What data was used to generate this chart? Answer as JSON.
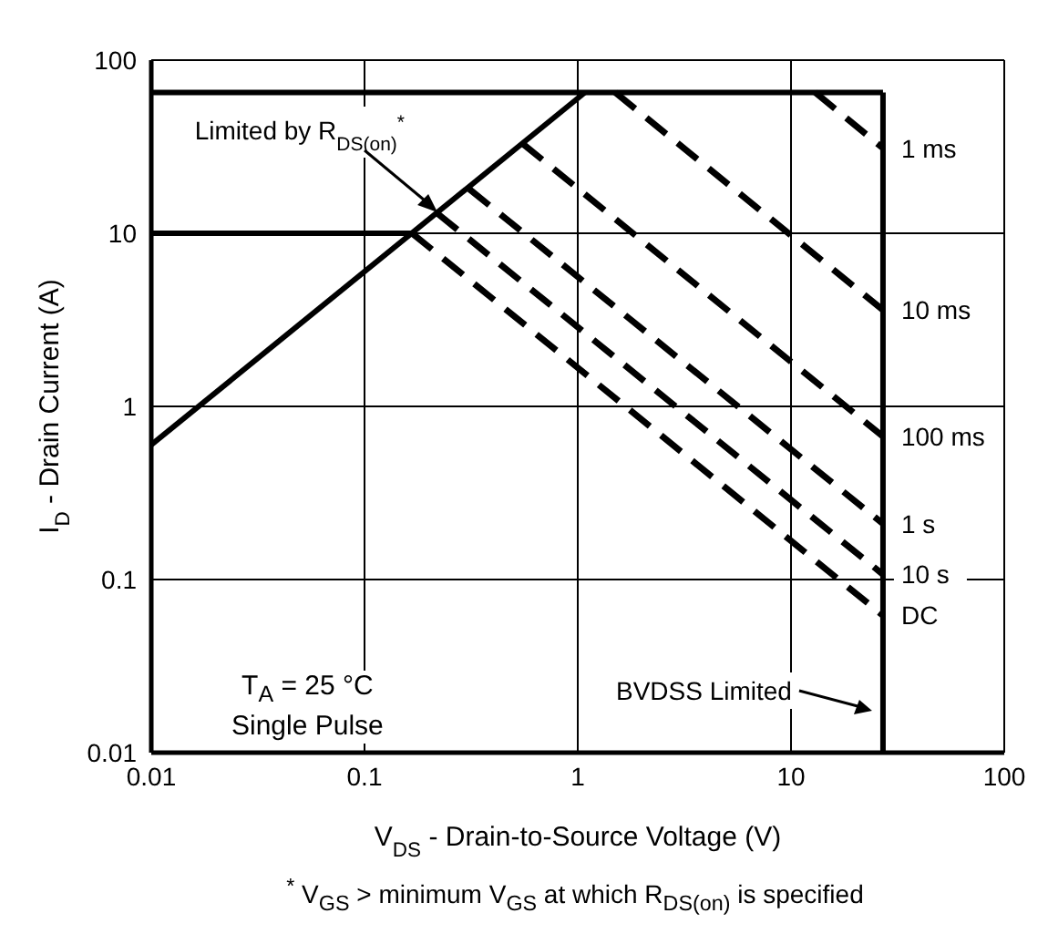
{
  "chart_data": {
    "type": "line",
    "xlabel": "V$_{DS}$ - Drain-to-Source Voltage (V)",
    "ylabel": "I$_{D}$ - Drain Current (A)",
    "log": "xy",
    "xlim": [
      0.01,
      100
    ],
    "ylim": [
      0.01,
      100
    ],
    "xticks": [
      0.01,
      0.1,
      1,
      10,
      100
    ],
    "yticks": [
      0.01,
      0.1,
      1,
      10,
      100
    ],
    "grid": true,
    "marker": "none",
    "series": [
      {
        "name": "Limited by R$_{DS(on)}$$^{*}$",
        "color": "#000000",
        "line_style": "solid",
        "x": [
          0.01,
          1.08
        ],
        "values": [
          0.6,
          65
        ]
      },
      {
        "color": "#000000",
        "line_style": "solid",
        "x": [
          0.01,
          27
        ],
        "values": [
          65,
          65
        ]
      },
      {
        "color": "#000000",
        "line_style": "solid",
        "x": [
          0.01,
          0.167
        ],
        "values": [
          10,
          10
        ]
      },
      {
        "name": "BVDSS Limited",
        "color": "#000000",
        "line_style": "solid",
        "x": [
          27,
          27
        ],
        "values": [
          0.01,
          65
        ]
      },
      {
        "name": "1 ms",
        "color": "#000000",
        "line_style": "dashed",
        "x": [
          13,
          27
        ],
        "values": [
          65,
          31
        ]
      },
      {
        "name": "10 ms",
        "color": "#000000",
        "line_style": "dashed",
        "x": [
          1.5,
          27
        ],
        "values": [
          65,
          3.6
        ]
      },
      {
        "name": "100 ms",
        "color": "#000000",
        "line_style": "dashed",
        "x": [
          0.55,
          27
        ],
        "values": [
          33,
          0.67
        ]
      },
      {
        "name": "1 s",
        "color": "#000000",
        "line_style": "dashed",
        "x": [
          0.31,
          27
        ],
        "values": [
          18,
          0.21
        ]
      },
      {
        "name": "10 s",
        "color": "#000000",
        "line_style": "dashed",
        "x": [
          0.22,
          27
        ],
        "values": [
          13,
          0.107
        ]
      },
      {
        "name": "DC",
        "color": "#000000",
        "line_style": "dashed",
        "x": [
          0.167,
          27
        ],
        "values": [
          10,
          0.062
        ]
      }
    ],
    "annotations": [
      "T$_{A}$ = 25 °C",
      "Single Pulse",
      "$^{*}$ V$_{GS}$ > minimum V$_{GS}$ at which R$_{DS(on)}$ is specified"
    ]
  }
}
